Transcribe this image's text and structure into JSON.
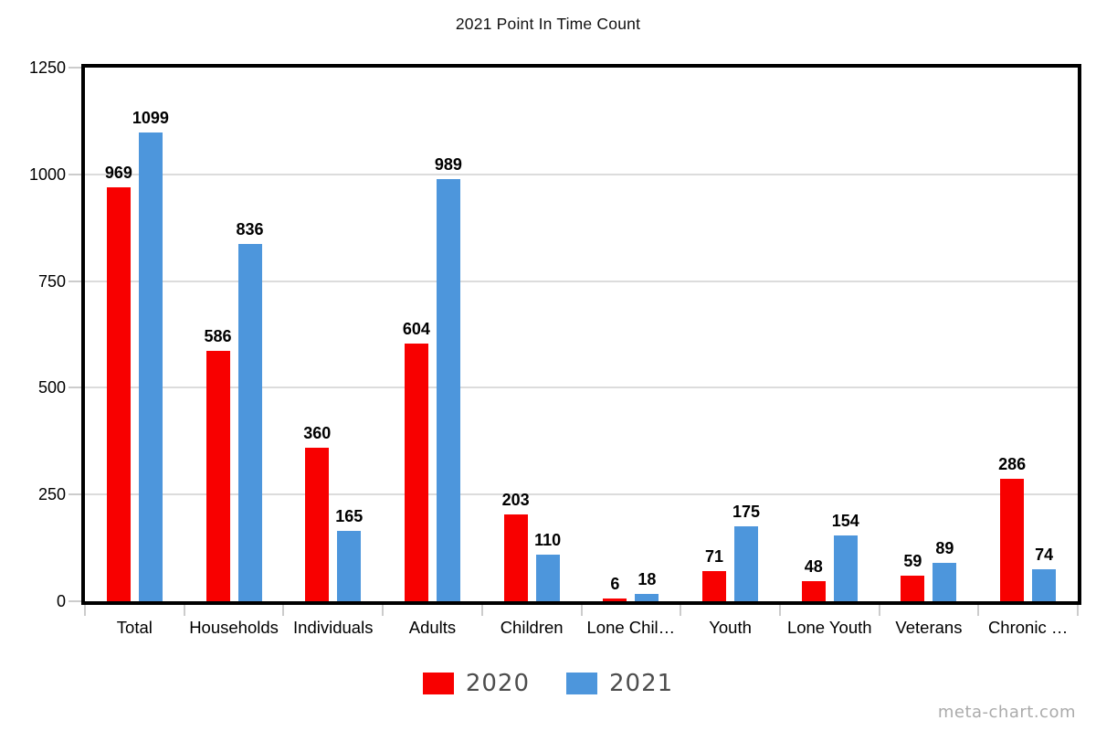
{
  "page": {
    "watermark": "meta-chart.com"
  },
  "chart_data": {
    "type": "bar",
    "title": "2021 Point In Time Count",
    "categories": [
      "Total",
      "Households",
      "Individuals",
      "Adults",
      "Children",
      "Lone Chil…",
      "Youth",
      "Lone Youth",
      "Veterans",
      "Chronic …"
    ],
    "series": [
      {
        "name": "2020",
        "color": "#F80000",
        "values": [
          969,
          586,
          360,
          604,
          203,
          6,
          71,
          48,
          59,
          286
        ]
      },
      {
        "name": "2021",
        "color": "#4D96DC",
        "values": [
          1099,
          836,
          165,
          989,
          110,
          18,
          175,
          154,
          89,
          74
        ]
      }
    ],
    "ylim": [
      0,
      1250
    ],
    "yticks": [
      0,
      250,
      500,
      750,
      1000,
      1250
    ],
    "grid": true,
    "value_labels": true,
    "legend_position": "bottom",
    "colors": {
      "gridline": "#DCDCDC",
      "axis_border": "#000000",
      "tick_mark": "#CCCCCC",
      "legend_text": "#4D4D4D",
      "watermark": "#ABABAB"
    }
  }
}
